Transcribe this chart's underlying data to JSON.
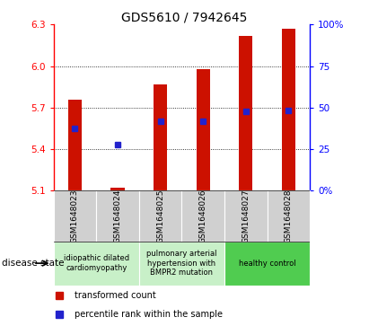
{
  "title": "GDS5610 / 7942645",
  "samples": [
    "GSM1648023",
    "GSM1648024",
    "GSM1648025",
    "GSM1648026",
    "GSM1648027",
    "GSM1648028"
  ],
  "red_values": [
    5.76,
    5.12,
    5.87,
    5.98,
    6.22,
    6.27
  ],
  "blue_values": [
    5.55,
    5.43,
    5.6,
    5.6,
    5.67,
    5.68
  ],
  "bar_bottom": 5.1,
  "ylim_left": [
    5.1,
    6.3
  ],
  "ylim_right": [
    0,
    100
  ],
  "left_ticks": [
    5.1,
    5.4,
    5.7,
    6.0,
    6.3
  ],
  "right_ticks": [
    0,
    25,
    50,
    75,
    100
  ],
  "right_tick_labels": [
    "0%",
    "25",
    "50",
    "75",
    "100%"
  ],
  "grid_values": [
    5.4,
    5.7,
    6.0
  ],
  "group_info": [
    {
      "start": 0,
      "end": 1,
      "color": "#c8f0c8",
      "label": "idiopathic dilated\ncardiomyopathy"
    },
    {
      "start": 2,
      "end": 3,
      "color": "#c8f0c8",
      "label": "pulmonary arterial\nhypertension with\nBMPR2 mutation"
    },
    {
      "start": 4,
      "end": 5,
      "color": "#50cc50",
      "label": "healthy control"
    }
  ],
  "disease_state_label": "disease state",
  "legend_red": "transformed count",
  "legend_blue": "percentile rank within the sample",
  "bar_color": "#cc1100",
  "blue_color": "#2222cc",
  "bar_width": 0.32,
  "blue_marker_size": 5,
  "sample_cell_color": "#d0d0d0",
  "title_fontsize": 10,
  "tick_fontsize": 7.5,
  "label_fontsize": 6.5
}
